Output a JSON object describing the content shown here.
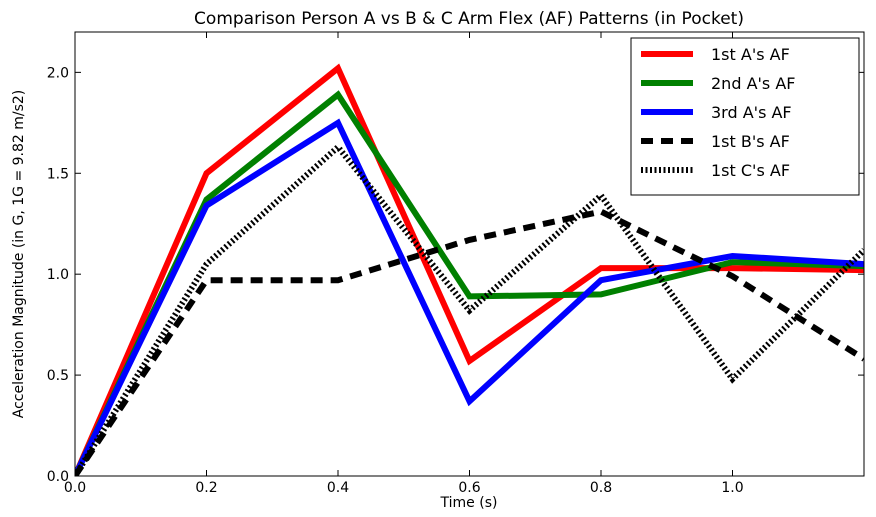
{
  "chart_data": {
    "type": "line",
    "title": "Comparison Person A vs B & C Arm Flex (AF) Patterns (in Pocket)",
    "xlabel": "Time (s)",
    "ylabel": "Acceleration Magnitude (in G, 1G = 9.82 m/s2)",
    "xlim": [
      0.0,
      1.2
    ],
    "ylim": [
      0.0,
      2.2
    ],
    "xticks": [
      "0.0",
      "0.2",
      "0.4",
      "0.6",
      "0.8",
      "1.0"
    ],
    "yticks": [
      "0.0",
      "0.5",
      "1.0",
      "1.5",
      "2.0"
    ],
    "grid": false,
    "legend_position": "top-right",
    "x": [
      0.0,
      0.2,
      0.4,
      0.6,
      0.8,
      1.0,
      1.2
    ],
    "series": [
      {
        "name": "1st A's AF",
        "values": [
          0.0,
          1.5,
          2.02,
          0.57,
          1.03,
          1.03,
          1.02
        ],
        "color": "#ff0000",
        "style": "solid"
      },
      {
        "name": "2nd A's AF",
        "values": [
          0.0,
          1.37,
          1.89,
          0.89,
          0.9,
          1.06,
          1.04
        ],
        "color": "#008000",
        "style": "solid"
      },
      {
        "name": "3rd A's AF",
        "values": [
          0.0,
          1.34,
          1.75,
          0.37,
          0.97,
          1.09,
          1.05
        ],
        "color": "#0000ff",
        "style": "solid"
      },
      {
        "name": "1st B's AF",
        "values": [
          0.0,
          0.97,
          0.97,
          1.17,
          1.31,
          0.99,
          0.58
        ],
        "color": "#000000",
        "style": "dashed"
      },
      {
        "name": "1st C's AF",
        "values": [
          0.0,
          1.05,
          1.63,
          0.82,
          1.39,
          0.48,
          1.12
        ],
        "color": "#000000",
        "style": "dotted"
      }
    ]
  }
}
